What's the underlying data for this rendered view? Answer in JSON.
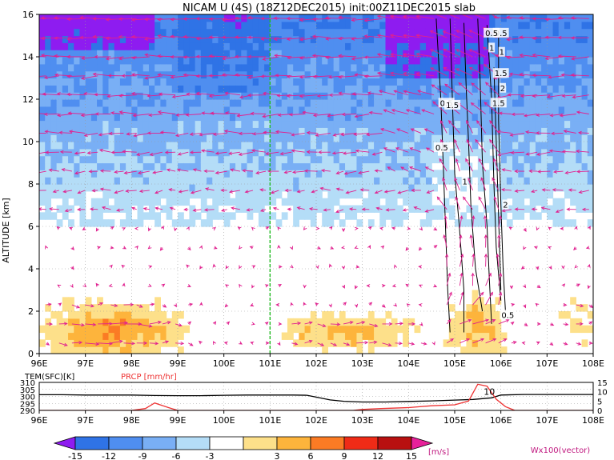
{
  "title": "NICAM U (4S) (18Z12DEC2015) init:00Z11DEC2015 slab",
  "colors": {
    "shades": [
      "#8e1cf0",
      "#2f73e6",
      "#4f8ef0",
      "#79aff5",
      "#b4ddf7",
      "#ffffff",
      "#fde08a",
      "#fdb43c",
      "#fb7b24",
      "#ef2b17",
      "#b81010",
      "#e8209a"
    ],
    "vector": "#e0208f",
    "tem_line": "#000000",
    "prcp_line": "#ee3333",
    "marker_line": "#22bb22",
    "contour": "#000000"
  },
  "chart_data": [
    {
      "type": "heatmap",
      "title": "NICAM U (4S) (18Z12DEC2015) init:00Z11DEC2015 slab",
      "ylabel": "ALTITUDE [km]",
      "x_ticks": [
        "96E",
        "97E",
        "98E",
        "99E",
        "100E",
        "101E",
        "102E",
        "103E",
        "104E",
        "105E",
        "106E",
        "107E",
        "108E"
      ],
      "y_ticks": [
        "0",
        "2",
        "4",
        "6",
        "8",
        "10",
        "12",
        "14",
        "16"
      ],
      "xlim": [
        96,
        108
      ],
      "ylim": [
        0,
        16
      ],
      "grid": true,
      "marker_line_x": 101,
      "colorbar": {
        "ticks": [
          "-15",
          "-12",
          "-9",
          "-6",
          "-3",
          "3",
          "6",
          "9",
          "12",
          "15"
        ],
        "unit": "[m/s]",
        "vector_label": "Wx100(vector)"
      },
      "contour_labels": [
        "0.5",
        "1",
        "1.5",
        "2",
        "1.5",
        "0.5",
        "0.5",
        "1",
        "0.5",
        "1",
        "1.5",
        "2",
        "0.5"
      ]
    },
    {
      "type": "line",
      "series": [
        {
          "name": "TEM(SFC)[K]",
          "x": [
            96,
            96.5,
            97,
            97.5,
            98,
            98.5,
            99,
            99.5,
            100,
            100.5,
            101,
            101.5,
            101.8,
            102,
            102.3,
            102.6,
            103,
            103.5,
            104,
            104.5,
            105,
            105.4,
            105.8,
            106,
            106.5,
            107,
            107.5,
            108
          ],
          "values": [
            301.2,
            301.2,
            301,
            301,
            301,
            300.6,
            300.5,
            300.5,
            300.8,
            301,
            301,
            301,
            300.8,
            299.5,
            297.5,
            296.5,
            296,
            296,
            296.4,
            296.8,
            297.4,
            297.8,
            299,
            301,
            301.4,
            301.4,
            301.4,
            301.4
          ]
        },
        {
          "name": "PRCP [mm/hr]",
          "x": [
            96,
            98,
            98.3,
            98.5,
            98.8,
            99,
            100,
            102.8,
            103,
            103.4,
            104,
            104.5,
            105,
            105.3,
            105.5,
            105.7,
            105.9,
            106.1,
            106.3,
            108
          ],
          "values": [
            0,
            0,
            1,
            4,
            1.5,
            0,
            0,
            0,
            0.5,
            1,
            1.5,
            2.5,
            3,
            5,
            14,
            13,
            6,
            2,
            0,
            0
          ]
        }
      ],
      "y_ticks_left": [
        "290",
        "295",
        "300",
        "305",
        "310"
      ],
      "ylim_left": [
        290,
        310
      ],
      "y_ticks_right": [
        "0",
        "5",
        "10",
        "15"
      ],
      "ylim_right": [
        0,
        15
      ],
      "x_ticks": [
        "96E",
        "97E",
        "98E",
        "99E",
        "100E",
        "101E",
        "102E",
        "103E",
        "104E",
        "105E",
        "106E",
        "107E",
        "108E"
      ],
      "xlim": [
        96,
        108
      ],
      "inline_label": "10",
      "grid": true
    }
  ]
}
